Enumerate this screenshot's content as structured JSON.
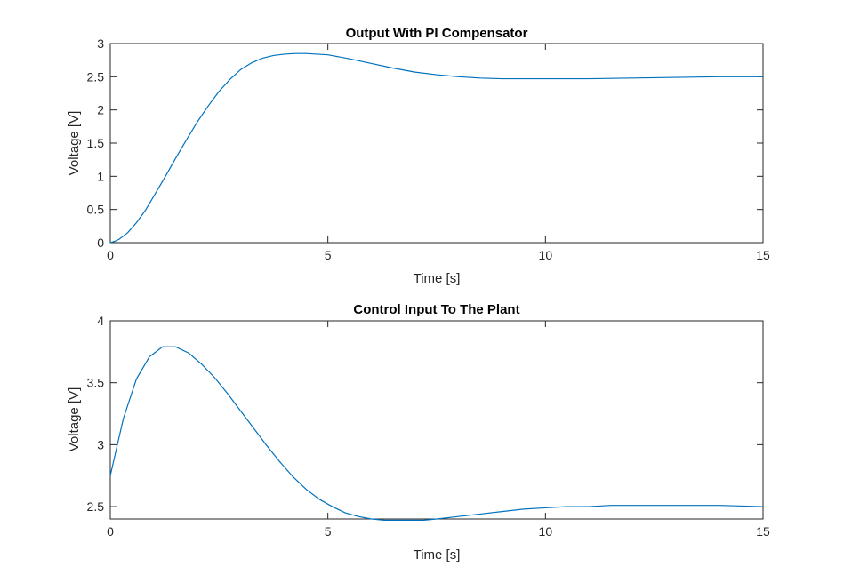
{
  "chart_data": [
    {
      "type": "line",
      "title": "Output With PI Compensator",
      "xlabel": "Time [s]",
      "ylabel": "Voltage [V]",
      "xlim": [
        0,
        15
      ],
      "ylim": [
        0,
        3
      ],
      "xticks": [
        0,
        5,
        10,
        15
      ],
      "yticks": [
        0,
        0.5,
        1,
        1.5,
        2,
        2.5,
        3
      ],
      "grid": false,
      "color": "#0072BD",
      "x": [
        0,
        0.1,
        0.2,
        0.4,
        0.6,
        0.8,
        1.0,
        1.25,
        1.5,
        1.75,
        2.0,
        2.25,
        2.5,
        2.75,
        3.0,
        3.25,
        3.5,
        3.75,
        4.0,
        4.25,
        4.5,
        4.75,
        5.0,
        5.5,
        6.0,
        6.5,
        7.0,
        7.5,
        8.0,
        8.5,
        9.0,
        9.5,
        10.0,
        10.5,
        11.0,
        12.0,
        13.0,
        14.0,
        15.0
      ],
      "y": [
        0,
        0.02,
        0.05,
        0.15,
        0.3,
        0.48,
        0.7,
        0.98,
        1.27,
        1.55,
        1.82,
        2.06,
        2.28,
        2.46,
        2.61,
        2.71,
        2.78,
        2.82,
        2.84,
        2.85,
        2.85,
        2.84,
        2.83,
        2.77,
        2.7,
        2.63,
        2.57,
        2.53,
        2.5,
        2.48,
        2.47,
        2.47,
        2.47,
        2.47,
        2.47,
        2.48,
        2.49,
        2.5,
        2.5
      ]
    },
    {
      "type": "line",
      "title": "Control Input To The Plant",
      "xlabel": "Time [s]",
      "ylabel": "Voltage [V]",
      "xlim": [
        0,
        15
      ],
      "ylim": [
        2.4,
        4
      ],
      "xticks": [
        0,
        5,
        10,
        15
      ],
      "yticks": [
        2.5,
        3,
        3.5,
        4
      ],
      "grid": false,
      "color": "#0072BD",
      "x": [
        0,
        0.3,
        0.6,
        0.9,
        1.2,
        1.5,
        1.8,
        2.1,
        2.4,
        2.7,
        3.0,
        3.3,
        3.6,
        3.9,
        4.2,
        4.5,
        4.8,
        5.1,
        5.4,
        5.7,
        6.0,
        6.3,
        6.6,
        6.9,
        7.2,
        7.5,
        8.0,
        8.5,
        9.0,
        9.5,
        10.0,
        10.5,
        11.0,
        11.5,
        12.0,
        12.5,
        13.0,
        14.0,
        15.0
      ],
      "y": [
        2.75,
        3.21,
        3.53,
        3.71,
        3.79,
        3.79,
        3.74,
        3.65,
        3.54,
        3.41,
        3.27,
        3.13,
        2.99,
        2.86,
        2.74,
        2.64,
        2.56,
        2.5,
        2.45,
        2.42,
        2.4,
        2.39,
        2.39,
        2.39,
        2.39,
        2.4,
        2.42,
        2.44,
        2.46,
        2.48,
        2.49,
        2.5,
        2.5,
        2.51,
        2.51,
        2.51,
        2.51,
        2.51,
        2.5
      ]
    }
  ]
}
